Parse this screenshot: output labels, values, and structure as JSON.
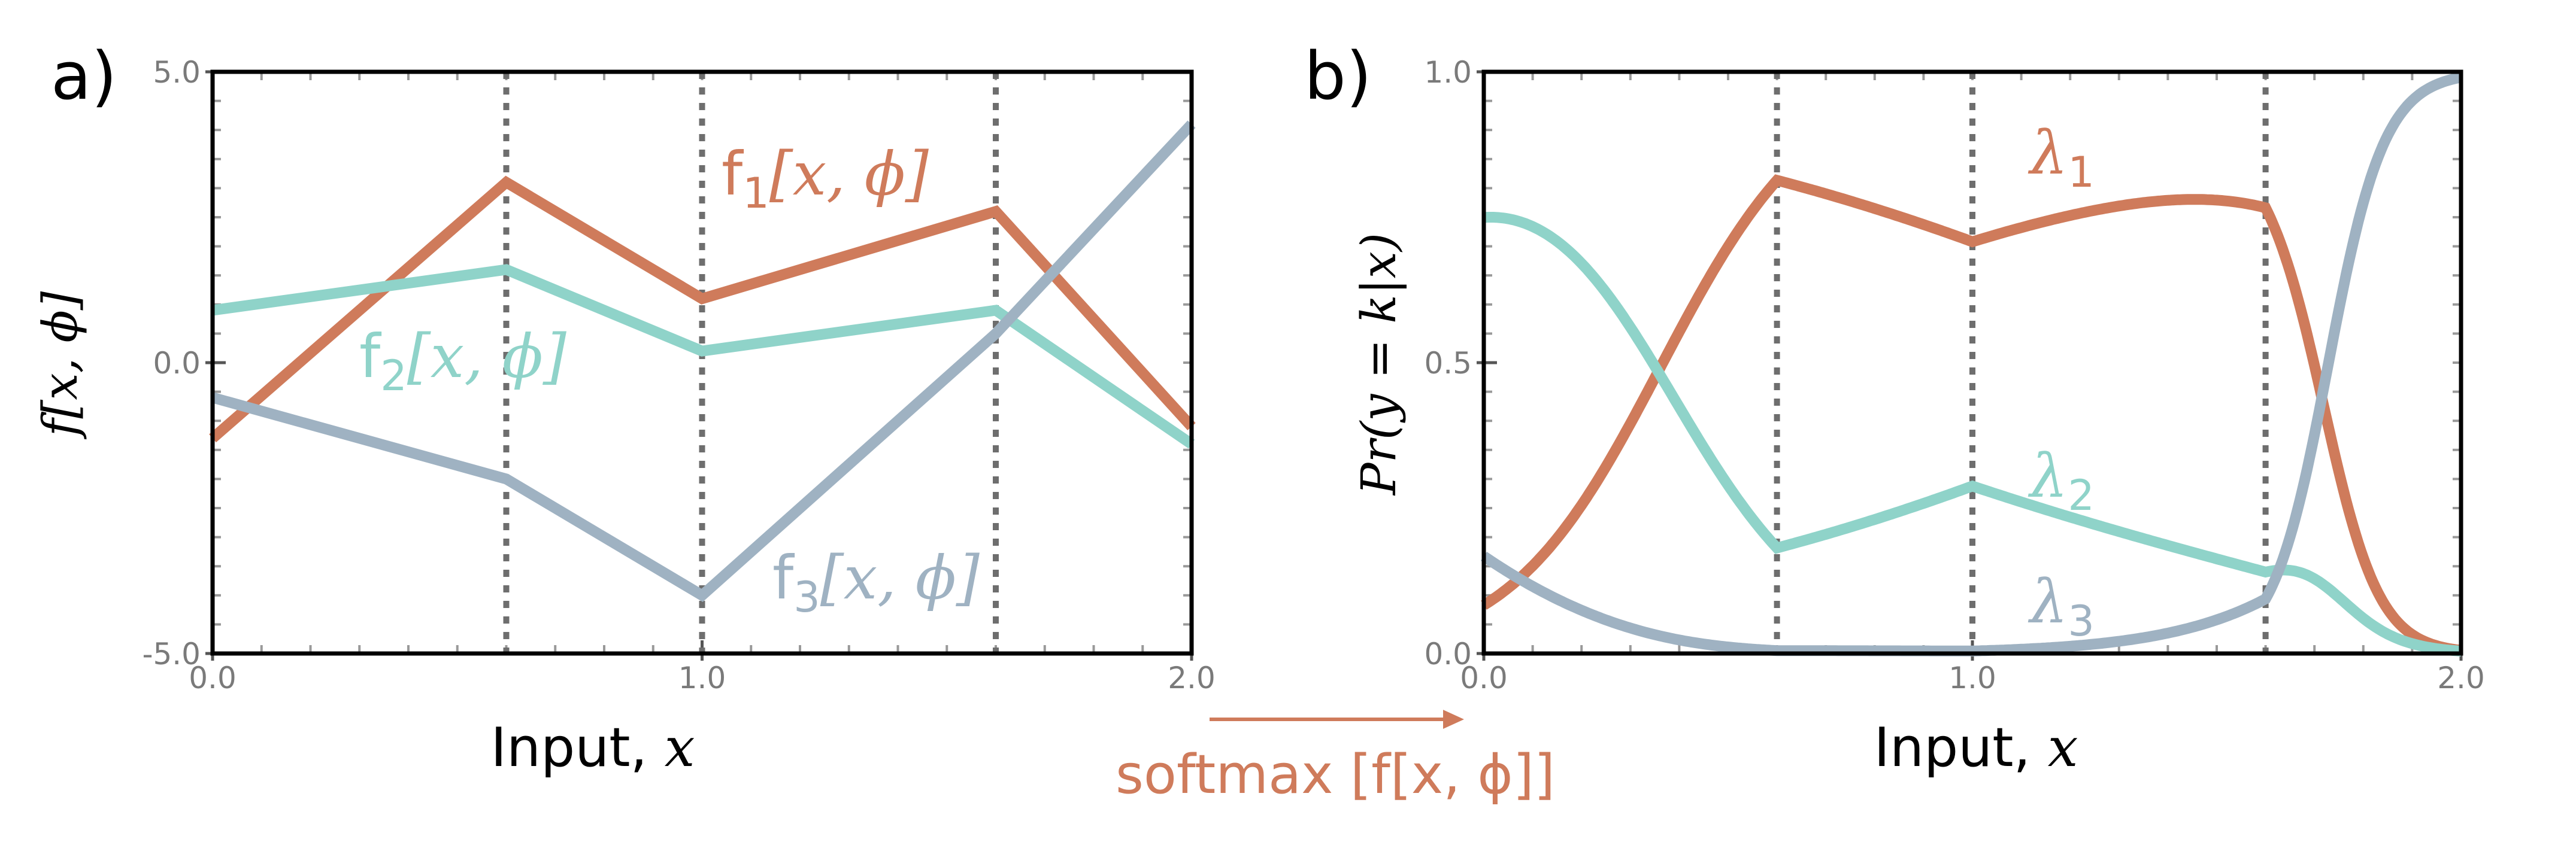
{
  "chart_data": [
    {
      "panel_label": "a)",
      "type": "line",
      "xlabel": "Input, ",
      "xlabel_var": "x",
      "ylabel": "f[x, ϕ]",
      "xlim": [
        0,
        2
      ],
      "ylim": [
        -5,
        5
      ],
      "x_ticks": [
        "0.0",
        "1.0",
        "2.0"
      ],
      "y_ticks": [
        "5.0",
        "0.0",
        "-5.0"
      ],
      "y_tick_values": [
        5,
        0,
        -5
      ],
      "x_tick_values": [
        0,
        1,
        2
      ],
      "vlines": [
        0.6,
        1.0,
        1.6
      ],
      "series": [
        {
          "name": "f1[x, ϕ]",
          "color": "#cf7b5b",
          "x": [
            0,
            0.6,
            1.0,
            1.6,
            2.0
          ],
          "y": [
            -1.3,
            3.1,
            1.1,
            2.6,
            -1.1
          ]
        },
        {
          "name": "f2[x, ϕ]",
          "color": "#8fd3c9",
          "x": [
            0,
            0.6,
            1.0,
            1.6,
            2.0
          ],
          "y": [
            0.9,
            1.6,
            0.2,
            0.9,
            -1.4
          ]
        },
        {
          "name": "f3[x, ϕ]",
          "color": "#9fb2c2",
          "x": [
            0,
            0.6,
            1.0,
            1.6,
            2.0
          ],
          "y": [
            -0.6,
            -2.0,
            -4.0,
            0.5,
            4.1
          ]
        }
      ]
    },
    {
      "panel_label": "b)",
      "type": "line",
      "xlabel": "Input, ",
      "xlabel_var": "x",
      "ylabel": "Pr(y = k|x)",
      "xlim": [
        0,
        2
      ],
      "ylim": [
        0,
        1
      ],
      "x_ticks": [
        "0.0",
        "1.0",
        "2.0"
      ],
      "y_ticks": [
        "1.0",
        "0.5",
        "0.0"
      ],
      "y_tick_values": [
        1,
        0.5,
        0
      ],
      "x_tick_values": [
        0,
        1,
        2
      ],
      "vlines": [
        0.6,
        1.0,
        1.6
      ],
      "series": [
        {
          "name": "λ1",
          "color": "#cf7b5b"
        },
        {
          "name": "λ2",
          "color": "#8fd3c9"
        },
        {
          "name": "λ3",
          "color": "#9fb2c2"
        }
      ]
    }
  ],
  "transform_label": "softmax [f[x, ϕ]]",
  "colors": {
    "f1": "#cf7b5b",
    "f2": "#8fd3c9",
    "f3": "#9fb2c2",
    "grid": "#6e6e6e",
    "axis": "#000000"
  }
}
